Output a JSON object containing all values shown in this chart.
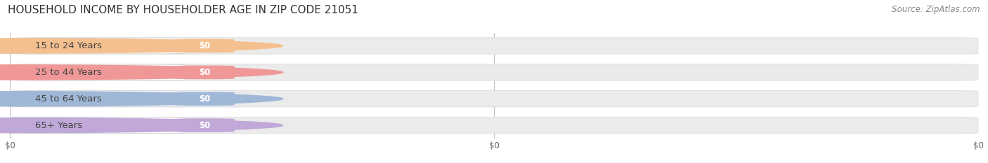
{
  "title": "HOUSEHOLD INCOME BY HOUSEHOLDER AGE IN ZIP CODE 21051",
  "source": "Source: ZipAtlas.com",
  "categories": [
    "15 to 24 Years",
    "25 to 44 Years",
    "45 to 64 Years",
    "65+ Years"
  ],
  "values": [
    0,
    0,
    0,
    0
  ],
  "bar_colors": [
    "#f5c090",
    "#f09898",
    "#a0b8d8",
    "#c0a8d8"
  ],
  "bar_track_color": "#ebebeb",
  "bar_track_border": "#dddddd",
  "title_fontsize": 11,
  "source_fontsize": 8.5,
  "label_fontsize": 9.5,
  "value_fontsize": 8.5,
  "tick_fontsize": 8.5,
  "background_color": "#ffffff",
  "fig_width": 14.06,
  "fig_height": 2.33,
  "x_tick_positions": [
    0,
    1
  ],
  "x_tick_labels": [
    "$0",
    "$0"
  ]
}
